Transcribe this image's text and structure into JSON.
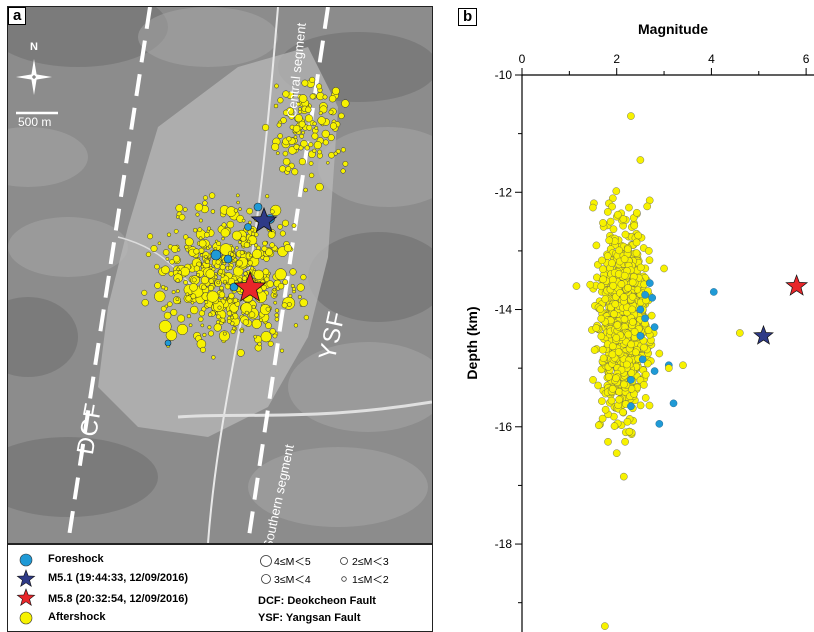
{
  "panel_a": {
    "label": "a",
    "north_label": "N",
    "scale_label": "500 m",
    "fault_labels": {
      "dcf": "DCF",
      "ysf": "YSF"
    },
    "segment_labels": {
      "central": "Central segment",
      "southern": "Southern segment"
    }
  },
  "legend": {
    "foreshock": "Foreshock",
    "m51": "M5.1 (19:44:33, 12/09/2016)",
    "m58": "M5.8 (20:32:54, 12/09/2016)",
    "aftershock": "Aftershock",
    "mag_4_5": "4≤M＜5",
    "mag_2_3": "2≤M＜3",
    "mag_3_4": "3≤M＜4",
    "mag_1_2": "1≤M＜2",
    "dcf_full": "DCF: Deokcheon Fault",
    "ysf_full": "YSF: Yangsan Fault"
  },
  "colors": {
    "foreshock": "#1f9ad6",
    "m51": "#2e3a87",
    "m58": "#e8262a",
    "aftershock": "#f7f200"
  },
  "panel_b": {
    "label": "b",
    "chart_data": {
      "type": "scatter",
      "xlabel": "Magnitude",
      "ylabel": "Depth (km)",
      "xlim": [
        0,
        6
      ],
      "ylim": [
        -19.5,
        -10
      ],
      "x_ticks": [
        0,
        2,
        4,
        6
      ],
      "y_ticks": [
        -10,
        -12,
        -14,
        -16,
        -18
      ],
      "x_axis_position": "top",
      "grid": false,
      "series": [
        {
          "type": "foreshock",
          "points": [
            [
              4.05,
              -13.7
            ],
            [
              2.7,
              -13.55
            ],
            [
              2.6,
              -13.75
            ],
            [
              2.75,
              -13.8
            ],
            [
              2.5,
              -14.0
            ],
            [
              2.6,
              -14.15
            ],
            [
              2.8,
              -14.3
            ],
            [
              2.5,
              -14.45
            ],
            [
              3.1,
              -14.95
            ],
            [
              2.8,
              -15.05
            ],
            [
              2.3,
              -15.2
            ],
            [
              3.2,
              -15.6
            ],
            [
              2.3,
              -15.65
            ],
            [
              2.9,
              -15.95
            ],
            [
              2.55,
              -14.85
            ]
          ]
        },
        {
          "type": "m51",
          "points": [
            [
              5.1,
              -14.45
            ]
          ]
        },
        {
          "type": "m58",
          "points": [
            [
              5.8,
              -13.6
            ]
          ]
        },
        {
          "type": "aftershock_outliers",
          "points": [
            [
              2.3,
              -10.7
            ],
            [
              1.75,
              -19.4
            ],
            [
              2.15,
              -16.85
            ],
            [
              4.6,
              -14.4
            ],
            [
              3.4,
              -14.95
            ],
            [
              1.15,
              -13.6
            ],
            [
              3.0,
              -13.3
            ],
            [
              3.1,
              -15.0
            ],
            [
              2.9,
              -14.75
            ],
            [
              2.0,
              -16.45
            ],
            [
              2.5,
              -11.45
            ],
            [
              1.5,
              -15.2
            ]
          ]
        }
      ],
      "aftershock_cluster": {
        "x_range": [
          1.35,
          2.9
        ],
        "y_range": [
          -16.5,
          -11.7
        ]
      }
    }
  }
}
